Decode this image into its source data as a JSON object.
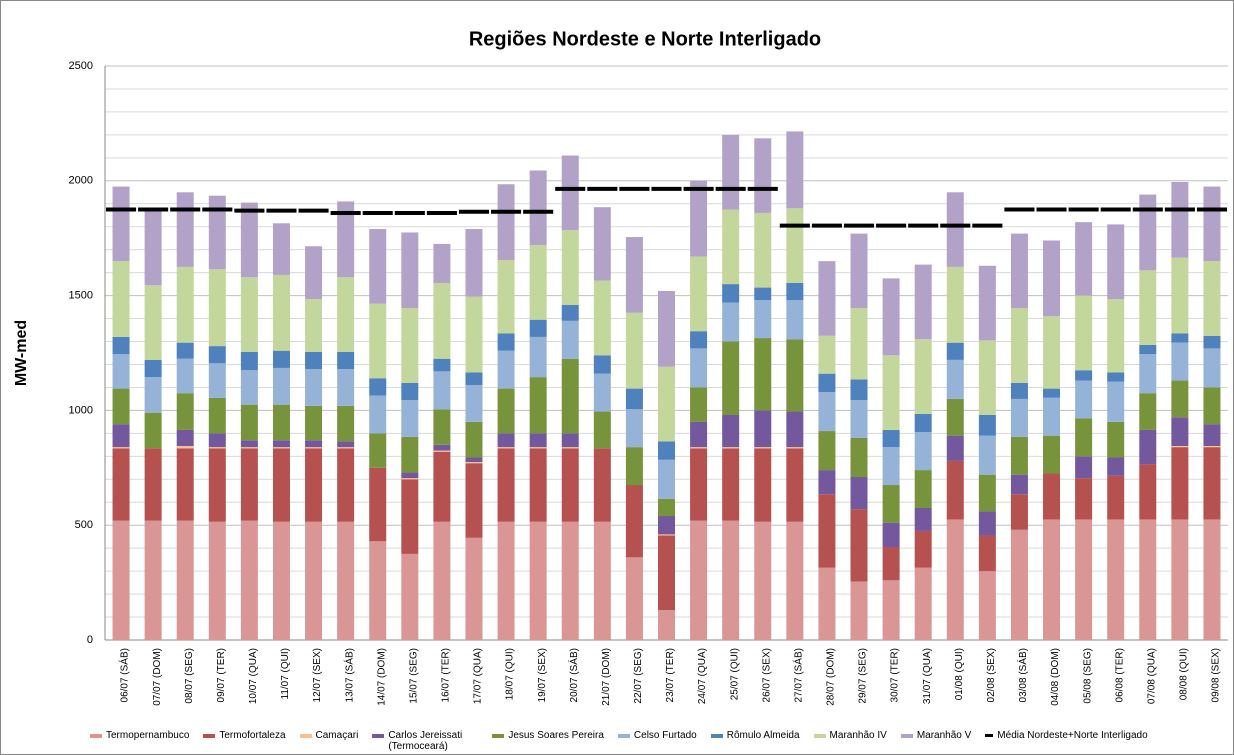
{
  "chart_data": {
    "type": "stacked_bar",
    "title": "Regiões Nordeste e Norte Interligado",
    "y_label": "MW-med",
    "categories": [
      "06/07 (SÁB)",
      "07/07 (DOM)",
      "08/07 (SEG)",
      "09/07 (TER)",
      "10/07 (QUA)",
      "11/07 (QUI)",
      "12/07 (SEX)",
      "13/07 (SÁB)",
      "14/07 (DOM)",
      "15/07 (SEG)",
      "16/07 (TER)",
      "17/07 (QUA)",
      "18/07 (QUI)",
      "19/07 (SEX)",
      "20/07 (SÁB)",
      "21/07 (DOM)",
      "22/07 (SEG)",
      "23/07 (TER)",
      "24/07 (QUA)",
      "25/07 (QUI)",
      "26/07 (SEX)",
      "27/07 (SÁB)",
      "28/07 (DOM)",
      "29/07 (SEG)",
      "30/07 (TER)",
      "31/07 (QUA)",
      "01/08 (QUI)",
      "02/08 (SEX)",
      "03/08 (SÁB)",
      "04/08 (DOM)",
      "05/08 (SEG)",
      "06/08 (TER)",
      "07/08 (QUA)",
      "08/08 (QUI)",
      "09/08 (SEX)"
    ],
    "series": [
      {
        "name": "Termopernambuco",
        "color": "#d99694",
        "values": [
          520,
          520,
          520,
          515,
          520,
          515,
          515,
          515,
          430,
          375,
          515,
          445,
          515,
          515,
          515,
          515,
          360,
          130,
          520,
          520,
          515,
          515,
          315,
          255,
          260,
          315,
          525,
          300,
          480,
          525,
          525,
          525,
          525,
          525,
          525
        ]
      },
      {
        "name": "Termofortaleza",
        "color": "#b5514e",
        "values": [
          315,
          315,
          315,
          320,
          315,
          320,
          320,
          320,
          320,
          325,
          305,
          325,
          320,
          320,
          320,
          320,
          315,
          325,
          315,
          315,
          320,
          320,
          320,
          315,
          145,
          160,
          255,
          155,
          155,
          200,
          180,
          190,
          240,
          315,
          315
        ]
      },
      {
        "name": "Camaçari",
        "color": "#fac090",
        "values": [
          5,
          0,
          10,
          5,
          5,
          5,
          5,
          5,
          0,
          5,
          5,
          5,
          5,
          5,
          5,
          0,
          0,
          5,
          5,
          5,
          5,
          5,
          0,
          0,
          0,
          0,
          0,
          0,
          0,
          0,
          0,
          0,
          0,
          5,
          5
        ]
      },
      {
        "name": "Carlos Jereissati (Termoceará)",
        "color": "#74589e",
        "values": [
          100,
          0,
          70,
          60,
          30,
          30,
          30,
          25,
          0,
          25,
          25,
          20,
          60,
          60,
          60,
          0,
          0,
          80,
          110,
          140,
          160,
          155,
          105,
          140,
          105,
          100,
          110,
          105,
          85,
          0,
          95,
          80,
          150,
          125,
          95
        ]
      },
      {
        "name": "Jesus Soares Pereira",
        "color": "#77933c",
        "values": [
          155,
          155,
          160,
          155,
          155,
          155,
          150,
          155,
          150,
          155,
          155,
          155,
          195,
          245,
          325,
          160,
          165,
          75,
          150,
          320,
          315,
          315,
          170,
          170,
          165,
          165,
          160,
          160,
          165,
          165,
          165,
          155,
          160,
          160,
          160
        ]
      },
      {
        "name": "Celso Furtado",
        "color": "#95b3d7",
        "values": [
          150,
          155,
          150,
          150,
          150,
          160,
          160,
          160,
          165,
          160,
          165,
          160,
          165,
          175,
          165,
          165,
          165,
          170,
          170,
          170,
          165,
          170,
          170,
          165,
          165,
          165,
          170,
          170,
          165,
          165,
          165,
          175,
          170,
          165,
          170
        ]
      },
      {
        "name": "Rômulo Almeida",
        "color": "#4f81bd",
        "values": [
          75,
          75,
          70,
          75,
          80,
          75,
          75,
          75,
          75,
          75,
          55,
          55,
          75,
          75,
          70,
          80,
          90,
          80,
          75,
          80,
          55,
          75,
          80,
          90,
          75,
          80,
          75,
          90,
          70,
          40,
          45,
          40,
          40,
          40,
          55
        ]
      },
      {
        "name": "Maranhão IV",
        "color": "#c3d69b",
        "values": [
          330,
          325,
          330,
          335,
          325,
          330,
          230,
          325,
          325,
          325,
          330,
          330,
          320,
          325,
          325,
          325,
          330,
          325,
          325,
          325,
          325,
          325,
          165,
          310,
          325,
          325,
          330,
          325,
          325,
          315,
          325,
          320,
          325,
          330,
          325
        ]
      },
      {
        "name": "Maranhão V",
        "color": "#b3a2c7",
        "values": [
          325,
          325,
          325,
          320,
          325,
          225,
          230,
          330,
          325,
          330,
          170,
          295,
          330,
          325,
          325,
          320,
          330,
          330,
          330,
          325,
          325,
          335,
          325,
          325,
          335,
          325,
          325,
          325,
          325,
          330,
          320,
          325,
          330,
          330,
          325
        ]
      },
      {
        "name": "Média Nordeste+Norte Interligado",
        "color": "#000000",
        "kind": "line",
        "values": [
          1875,
          1875,
          1875,
          1875,
          1870,
          1870,
          1870,
          1860,
          1860,
          1860,
          1860,
          1865,
          1865,
          1865,
          1965,
          1965,
          1965,
          1965,
          1965,
          1965,
          1965,
          1805,
          1805,
          1805,
          1805,
          1805,
          1805,
          1805,
          1875,
          1875,
          1875,
          1875,
          1875,
          1875,
          1875
        ]
      }
    ],
    "ylim": [
      0,
      2500
    ],
    "yticks": [
      0,
      500,
      1000,
      1500,
      2000,
      2500
    ],
    "minor_yticks": [
      100,
      200,
      300,
      400,
      600,
      700,
      800,
      900,
      1100,
      1200,
      1300,
      1400,
      1600,
      1700,
      1800,
      1900,
      2100,
      2200,
      2300,
      2400
    ],
    "grid": true,
    "legend": "bottom"
  }
}
